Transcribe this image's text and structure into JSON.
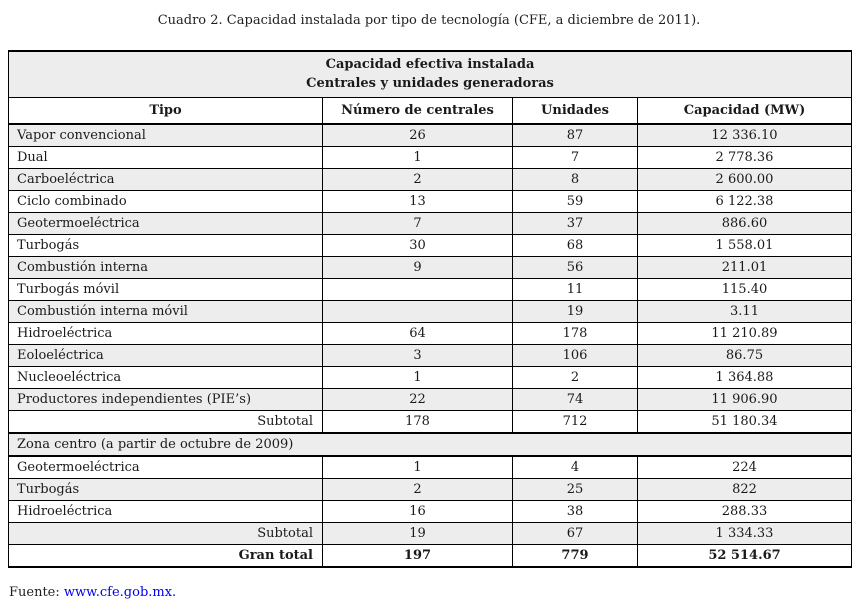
{
  "caption": "Cuadro 2. Capacidad instalada por tipo de tecnología (CFE, a diciembre de 2011).",
  "table": {
    "title_line1": "Capacidad efectiva instalada",
    "title_line2": "Centrales y unidades generadoras",
    "columns": [
      "Tipo",
      "Número de centrales",
      "Unidades",
      "Capacidad (MW)"
    ],
    "rows": [
      {
        "kind": "data",
        "shaded": true,
        "cells": [
          "Vapor convencional",
          "26",
          "87",
          "12 336.10"
        ]
      },
      {
        "kind": "data",
        "shaded": false,
        "cells": [
          "Dual",
          "1",
          "7",
          "2 778.36"
        ]
      },
      {
        "kind": "data",
        "shaded": true,
        "cells": [
          "Carboeléctrica",
          "2",
          "8",
          "2 600.00"
        ]
      },
      {
        "kind": "data",
        "shaded": false,
        "cells": [
          "Ciclo combinado",
          "13",
          "59",
          "6 122.38"
        ]
      },
      {
        "kind": "data",
        "shaded": true,
        "cells": [
          "Geotermoeléctrica",
          "7",
          "37",
          "886.60"
        ]
      },
      {
        "kind": "data",
        "shaded": false,
        "cells": [
          "Turbogás",
          "30",
          "68",
          "1 558.01"
        ]
      },
      {
        "kind": "data",
        "shaded": true,
        "cells": [
          "Combustión interna",
          "9",
          "56",
          "211.01"
        ]
      },
      {
        "kind": "data",
        "shaded": false,
        "cells": [
          "Turbogás móvil",
          "",
          "11",
          "115.40"
        ]
      },
      {
        "kind": "data",
        "shaded": true,
        "cells": [
          "Combustión interna móvil",
          "",
          "19",
          "3.11"
        ]
      },
      {
        "kind": "data",
        "shaded": false,
        "cells": [
          "Hidroeléctrica",
          "64",
          "178",
          "11 210.89"
        ]
      },
      {
        "kind": "data",
        "shaded": true,
        "cells": [
          "Eoloeléctrica",
          "3",
          "106",
          "86.75"
        ]
      },
      {
        "kind": "data",
        "shaded": false,
        "cells": [
          "Nucleoeléctrica",
          "1",
          "2",
          "1 364.88"
        ]
      },
      {
        "kind": "data",
        "shaded": true,
        "cells": [
          "Productores independientes (PIE’s)",
          "22",
          "74",
          "11 906.90"
        ]
      },
      {
        "kind": "subtotal",
        "shaded": false,
        "cells": [
          "Subtotal",
          "178",
          "712",
          "51 180.34"
        ]
      },
      {
        "kind": "section",
        "shaded": true,
        "cells": [
          "Zona centro (a partir de octubre de 2009)"
        ]
      },
      {
        "kind": "data",
        "shaded": false,
        "cells": [
          "Geotermoeléctrica",
          "1",
          "4",
          "224"
        ]
      },
      {
        "kind": "data",
        "shaded": true,
        "cells": [
          "Turbogás",
          "2",
          "25",
          "822"
        ]
      },
      {
        "kind": "data",
        "shaded": false,
        "cells": [
          "Hidroeléctrica",
          "16",
          "38",
          "288.33"
        ]
      },
      {
        "kind": "subtotal",
        "shaded": true,
        "cells": [
          "Subtotal",
          "19",
          "67",
          "1 334.33"
        ]
      },
      {
        "kind": "grandtotal",
        "shaded": false,
        "cells": [
          "Gran total",
          "197",
          "779",
          "52 514.67"
        ]
      }
    ]
  },
  "footer": {
    "source_label": "Fuente:",
    "source_link": "www.cfe.gob.mx.",
    "link_color": "#0000ee"
  }
}
